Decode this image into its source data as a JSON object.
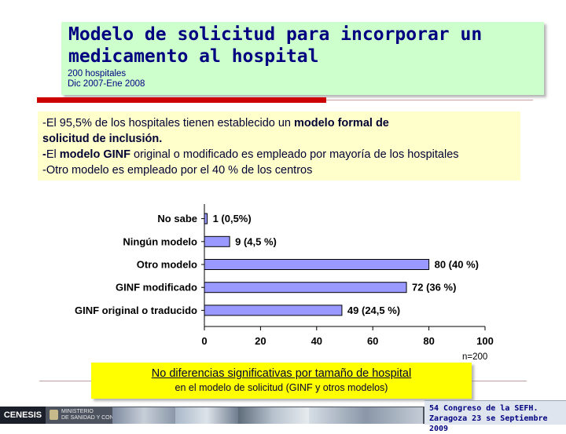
{
  "header": {
    "title": "Modelo de solicitud para incorporar un medicamento al hospital",
    "subtitle_line1": "200 hospitales",
    "subtitle_line2": "Dic 2007-Ene 2008"
  },
  "findings": {
    "line1_prefix": "-El 95,5% de los  hospitales tienen establecido un ",
    "line1_bold": "modelo formal de",
    "line2_bold": "solicitud de inclusión.",
    "line3_lead": "-",
    "line3_prefix": "El ",
    "line3_bold": "modelo GINF",
    "line3_suffix": " original o modificado es empleado por  mayoría  de los hospitales",
    "line4": "-Otro modelo es empleado por el 40 % de los centros"
  },
  "chart_data": {
    "type": "bar",
    "orientation": "horizontal",
    "categories": [
      "No sabe",
      "Ningún modelo",
      "Otro modelo",
      "GINF modificado",
      "GINF original o traducido"
    ],
    "values": [
      1,
      9,
      80,
      72,
      49
    ],
    "data_labels": [
      "1 (0,5%)",
      "9 (4,5 %)",
      "80 (40 %)",
      "72 (36 %)",
      "49 (24,5 %)"
    ],
    "xlim": [
      0,
      100
    ],
    "x_ticks": [
      "0",
      "20",
      "40",
      "60",
      "80",
      "100"
    ],
    "bar_color": "#9999ff",
    "grid": false,
    "legend": "none"
  },
  "sample_note": "n=200",
  "conclusion": {
    "main": "No diferencias significativas por tamaño de hospital",
    "sub": "en el modelo de  solicitud (GINF y otros modelos)"
  },
  "footer": {
    "logo_text": "CENESIS",
    "ministry_line1": "MINISTERIO",
    "ministry_line2": "DE SANIDAD Y CONSUMO",
    "congress_line1": "54 Congreso de la SEFH.",
    "congress_line2": "Zaragoza 23 se Septiembre 2009"
  },
  "colors": {
    "title_box": "#ccffcc",
    "findings_box": "#ffffcc",
    "conclusion_box": "#ffff00",
    "accent_red": "#cc0000",
    "title_text": "#000080"
  }
}
